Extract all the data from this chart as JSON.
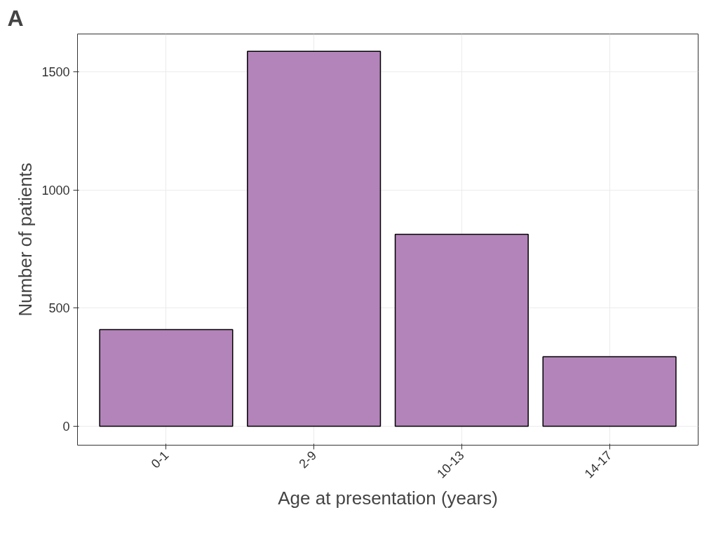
{
  "chart_data": {
    "type": "bar",
    "xlabel": "Age at presentation (years)",
    "ylabel": "Number of patients",
    "annotations": [
      "A"
    ],
    "categories": [
      "0-1",
      "2-9",
      "10-13",
      "14-17"
    ],
    "values": [
      409,
      1587,
      812,
      294
    ],
    "color": "#b384ba",
    "ylim": [
      -80,
      1660
    ],
    "yticks": [
      0,
      500,
      1000,
      1500
    ],
    "grid": true
  }
}
